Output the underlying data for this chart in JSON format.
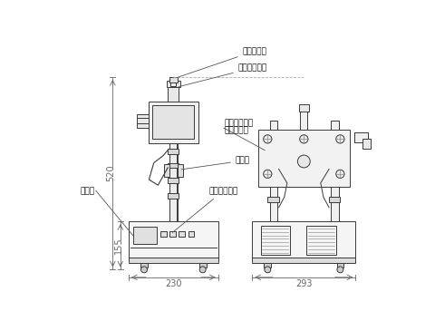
{
  "bg_color": "#ffffff",
  "line_color": "#3a3a3a",
  "dim_color": "#666666",
  "label_color": "#111111",
  "labels": {
    "air_damper": "エアダンパ",
    "handle": "上下ハンドル",
    "flex_joint_1": "フレキシブル",
    "flex_joint_2": "ジョイント",
    "sensor": "センサ",
    "switch": "操作スイッチ",
    "display": "表示部",
    "dim_520": "520",
    "dim_155": "155",
    "dim_230": "230",
    "dim_293": "293"
  },
  "figsize": [
    4.8,
    3.54
  ],
  "dpi": 100
}
